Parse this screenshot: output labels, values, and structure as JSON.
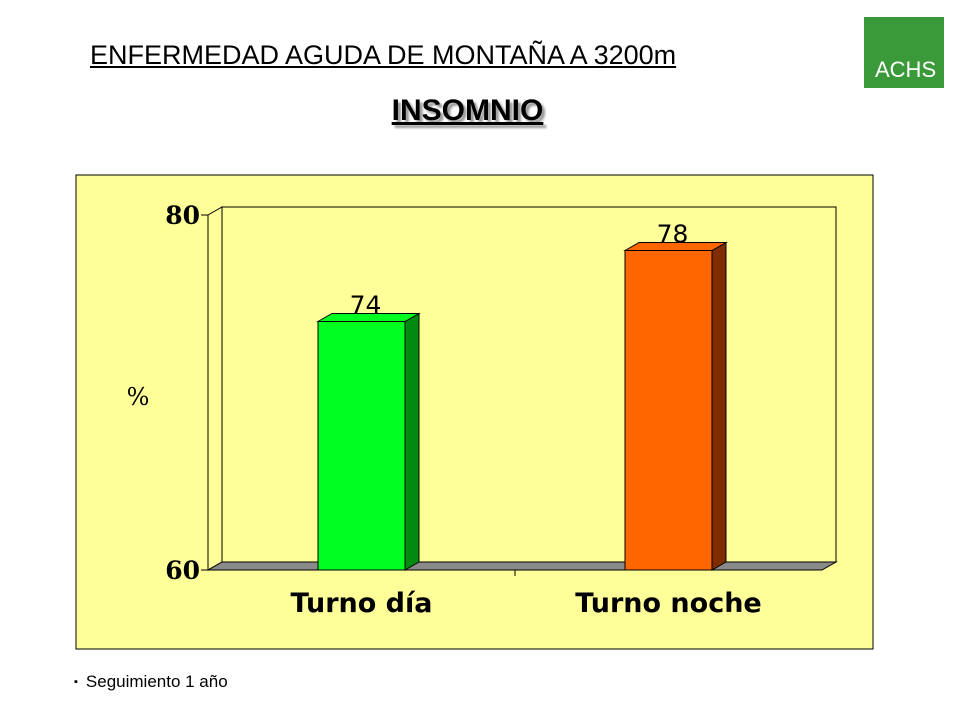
{
  "header": {
    "title": "ENFERMEDAD AGUDA DE MONTAÑA A 3200m",
    "subtitle": "INSOMNIO"
  },
  "logo": {
    "text": "ACHS",
    "color": "#3a9a3a"
  },
  "footer": {
    "bullet": "▪",
    "note": "Seguimiento 1 año"
  },
  "chart_data": {
    "type": "bar",
    "categories": [
      "Turno día",
      "Turno noche"
    ],
    "values": [
      74,
      78
    ],
    "value_labels": [
      "74",
      "78"
    ],
    "ylabel": "%",
    "ylim": [
      60,
      80
    ],
    "yticks": [
      "60",
      "80"
    ],
    "bar_colors": [
      "#00ff21",
      "#ff6600"
    ],
    "bar_side_colors": [
      "#008a10",
      "#7f2c00"
    ],
    "background": "#ffff99",
    "floor_color": "#8a8a8a",
    "grid": false,
    "style": "3d-column"
  }
}
